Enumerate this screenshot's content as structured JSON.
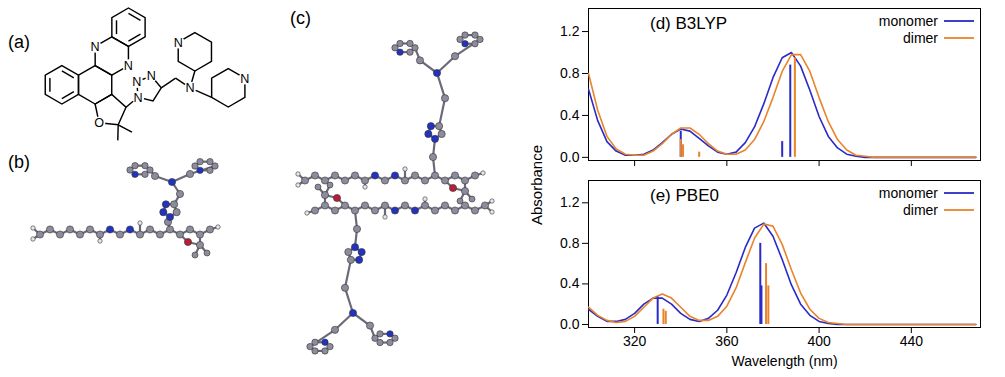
{
  "figure": {
    "panel_labels": [
      "(a)",
      "(b)",
      "(c)"
    ],
    "structure_atom_labels": [
      "N",
      "N",
      "O",
      "N",
      "N",
      "N",
      "N",
      "N",
      "N"
    ],
    "y_label": "Absorbance"
  },
  "chart_data": [
    {
      "type": "line",
      "title": "(d) B3LYP",
      "x": [
        300,
        304,
        308,
        312,
        316,
        320,
        324,
        328,
        332,
        336,
        340,
        344,
        348,
        352,
        356,
        360,
        364,
        368,
        372,
        376,
        380,
        384,
        388,
        392,
        396,
        400,
        404,
        408,
        412,
        416,
        420,
        424,
        428,
        432,
        436,
        440,
        444,
        448,
        452,
        456,
        460,
        464,
        468
      ],
      "series": [
        {
          "name": "monomer",
          "color": "#2a2ac8",
          "values": [
            0.65,
            0.35,
            0.15,
            0.06,
            0.02,
            0.02,
            0.03,
            0.07,
            0.14,
            0.22,
            0.27,
            0.25,
            0.18,
            0.11,
            0.05,
            0.03,
            0.05,
            0.14,
            0.29,
            0.51,
            0.76,
            0.95,
            1.0,
            0.87,
            0.64,
            0.39,
            0.2,
            0.09,
            0.03,
            0.01,
            0,
            0,
            0,
            0,
            0,
            0,
            0,
            0,
            0,
            0,
            0,
            0,
            0
          ],
          "sticks": {
            "x": [
              384,
              387.5,
              340
            ],
            "values": [
              0.15,
              0.88,
              0.25
            ]
          }
        },
        {
          "name": "dimer",
          "color": "#e8842a",
          "values": [
            0.8,
            0.45,
            0.2,
            0.08,
            0.03,
            0.02,
            0.02,
            0.06,
            0.13,
            0.22,
            0.28,
            0.28,
            0.22,
            0.13,
            0.06,
            0.03,
            0.03,
            0.07,
            0.17,
            0.34,
            0.57,
            0.82,
            0.98,
            0.98,
            0.82,
            0.57,
            0.34,
            0.17,
            0.07,
            0.02,
            0.01,
            0,
            0,
            0,
            0,
            0,
            0,
            0,
            0,
            0,
            0,
            0,
            0
          ],
          "sticks": {
            "x": [
              389.5,
              340,
              341,
              348
            ],
            "values": [
              0.95,
              0.17,
              0.12,
              0.05
            ]
          }
        }
      ],
      "xlim": [
        300,
        470
      ],
      "xticks": [
        320,
        360,
        400,
        440
      ],
      "ylim": [
        -0.03,
        1.42
      ],
      "yticks": [
        {
          "value": 0,
          "label": "0.0"
        },
        {
          "value": 0.4,
          "label": "0.4"
        },
        {
          "value": 0.8,
          "label": "0.8"
        },
        {
          "value": 1.2,
          "label": "1.2"
        }
      ],
      "legend": "top-right",
      "tick_labels": "y"
    },
    {
      "type": "line",
      "title": "(e) PBE0",
      "x_label": "Wavelength (nm)",
      "x": [
        300,
        304,
        308,
        312,
        316,
        320,
        324,
        328,
        332,
        336,
        340,
        344,
        348,
        352,
        356,
        360,
        364,
        368,
        372,
        376,
        380,
        384,
        388,
        392,
        396,
        400,
        404,
        408,
        412,
        416,
        420,
        424,
        428,
        432,
        436,
        440,
        444,
        448,
        452,
        456,
        460,
        464,
        468
      ],
      "series": [
        {
          "name": "monomer",
          "color": "#2a2ac8",
          "values": [
            0.15,
            0.08,
            0.03,
            0.03,
            0.05,
            0.11,
            0.2,
            0.26,
            0.26,
            0.2,
            0.11,
            0.05,
            0.03,
            0.06,
            0.14,
            0.29,
            0.51,
            0.76,
            0.95,
            1.0,
            0.87,
            0.64,
            0.39,
            0.2,
            0.09,
            0.03,
            0.01,
            0,
            0,
            0,
            0,
            0,
            0,
            0,
            0,
            0,
            0,
            0,
            0,
            0,
            0,
            0,
            0
          ],
          "sticks": {
            "x": [
              374.5,
              375,
              330
            ],
            "values": [
              0.8,
              0.38,
              0.27
            ]
          }
        },
        {
          "name": "dimer",
          "color": "#e8842a",
          "values": [
            0.17,
            0.09,
            0.04,
            0.02,
            0.03,
            0.08,
            0.17,
            0.26,
            0.3,
            0.26,
            0.17,
            0.08,
            0.04,
            0.04,
            0.08,
            0.18,
            0.36,
            0.61,
            0.85,
            0.99,
            0.97,
            0.79,
            0.54,
            0.31,
            0.15,
            0.06,
            0.02,
            0.01,
            0,
            0,
            0,
            0,
            0,
            0,
            0,
            0,
            0,
            0,
            0,
            0,
            0,
            0,
            0
          ],
          "sticks": {
            "x": [
              377,
              378,
              332.5,
              333.5
            ],
            "values": [
              0.6,
              0.38,
              0.15,
              0.13
            ]
          }
        }
      ],
      "xlim": [
        300,
        470
      ],
      "xticks": [
        320,
        360,
        400,
        440
      ],
      "ylim": [
        -0.03,
        1.42
      ],
      "yticks": [
        {
          "value": 0,
          "label": "0.0"
        },
        {
          "value": 0.4,
          "label": "0.4"
        },
        {
          "value": 0.8,
          "label": "0.8"
        },
        {
          "value": 1.2,
          "label": "1.2"
        }
      ],
      "legend": "top-right"
    }
  ]
}
